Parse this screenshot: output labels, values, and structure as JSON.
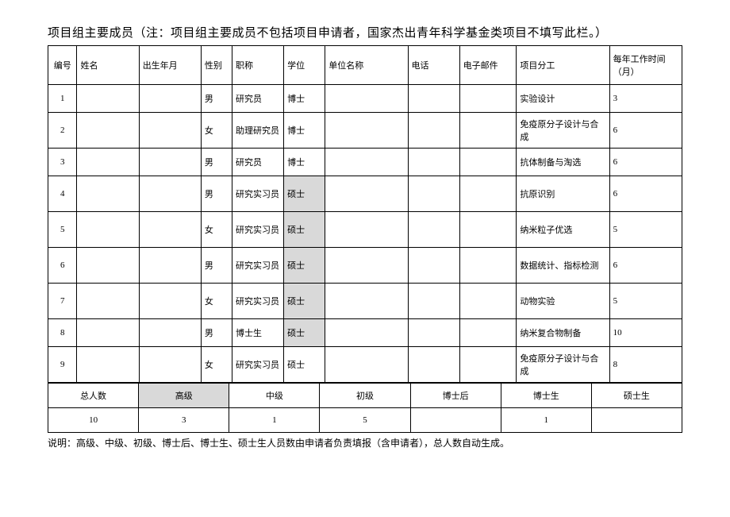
{
  "title": "项目组主要成员（注：项目组主要成员不包括项目申请者，国家杰出青年科学基金类项目不填写此栏。）",
  "headers": {
    "num": "编号",
    "name": "姓名",
    "birth": "出生年月",
    "gender": "性别",
    "jobtitle": "职称",
    "degree": "学位",
    "unit": "单位名称",
    "phone": "电话",
    "email": "电子邮件",
    "task": "项目分工",
    "months": "每年工作时间（月）"
  },
  "rows": [
    {
      "num": "1",
      "name": "",
      "birth": "",
      "gender": "男",
      "jobtitle": "研究员",
      "degree": "博士",
      "degree_shaded": false,
      "unit": "",
      "phone": "",
      "email": "",
      "task": "实验设计",
      "months": "3",
      "tall": false
    },
    {
      "num": "2",
      "name": "",
      "birth": "",
      "gender": "女",
      "jobtitle": "助理研究员",
      "degree": "博士",
      "degree_shaded": false,
      "unit": "",
      "phone": "",
      "email": "",
      "task": "免疫原分子设计与合成",
      "months": "6",
      "tall": true
    },
    {
      "num": "3",
      "name": "",
      "birth": "",
      "gender": "男",
      "jobtitle": "研究员",
      "degree": "博士",
      "degree_shaded": false,
      "unit": "",
      "phone": "",
      "email": "",
      "task": "抗体制备与淘选",
      "months": "6",
      "tall": false
    },
    {
      "num": "4",
      "name": "",
      "birth": "",
      "gender": "男",
      "jobtitle": "研究实习员",
      "degree": "硕士",
      "degree_shaded": true,
      "unit": "",
      "phone": "",
      "email": "",
      "task": "抗原识别",
      "months": "6",
      "tall": true
    },
    {
      "num": "5",
      "name": "",
      "birth": "",
      "gender": "女",
      "jobtitle": "研究实习员",
      "degree": "硕士",
      "degree_shaded": true,
      "unit": "",
      "phone": "",
      "email": "",
      "task": "纳米粒子优选",
      "months": "5",
      "tall": true
    },
    {
      "num": "6",
      "name": "",
      "birth": "",
      "gender": "男",
      "jobtitle": "研究实习员",
      "degree": "硕士",
      "degree_shaded": true,
      "unit": "",
      "phone": "",
      "email": "",
      "task": "数据统计、指标检测",
      "months": "6",
      "tall": true
    },
    {
      "num": "7",
      "name": "",
      "birth": "",
      "gender": "女",
      "jobtitle": "研究实习员",
      "degree": "硕士",
      "degree_shaded": true,
      "unit": "",
      "phone": "",
      "email": "",
      "task": "动物实验",
      "months": "5",
      "tall": true
    },
    {
      "num": "8",
      "name": "",
      "birth": "",
      "gender": "男",
      "jobtitle": "博士生",
      "degree": "硕士",
      "degree_shaded": true,
      "unit": "",
      "phone": "",
      "email": "",
      "task": "纳米复合物制备",
      "months": "10",
      "tall": false
    },
    {
      "num": "9",
      "name": "",
      "birth": "",
      "gender": "女",
      "jobtitle": "研究实习员",
      "degree": "硕士",
      "degree_shaded": false,
      "unit": "",
      "phone": "",
      "email": "",
      "task": "免疫原分子设计与合成",
      "months": "8",
      "tall": true
    }
  ],
  "summary": {
    "labels": {
      "total": "总人数",
      "senior": "高级",
      "mid": "中级",
      "junior": "初级",
      "postdoc": "博士后",
      "phd": "博士生",
      "master": "硕士生"
    },
    "values": {
      "total": "10",
      "senior": "3",
      "mid": "1",
      "junior": "5",
      "postdoc": "",
      "phd": "1",
      "master": ""
    }
  },
  "note": "说明：高级、中级、初级、博士后、博士生、硕士生人员数由申请者负责填报（含申请者），总人数自动生成。"
}
